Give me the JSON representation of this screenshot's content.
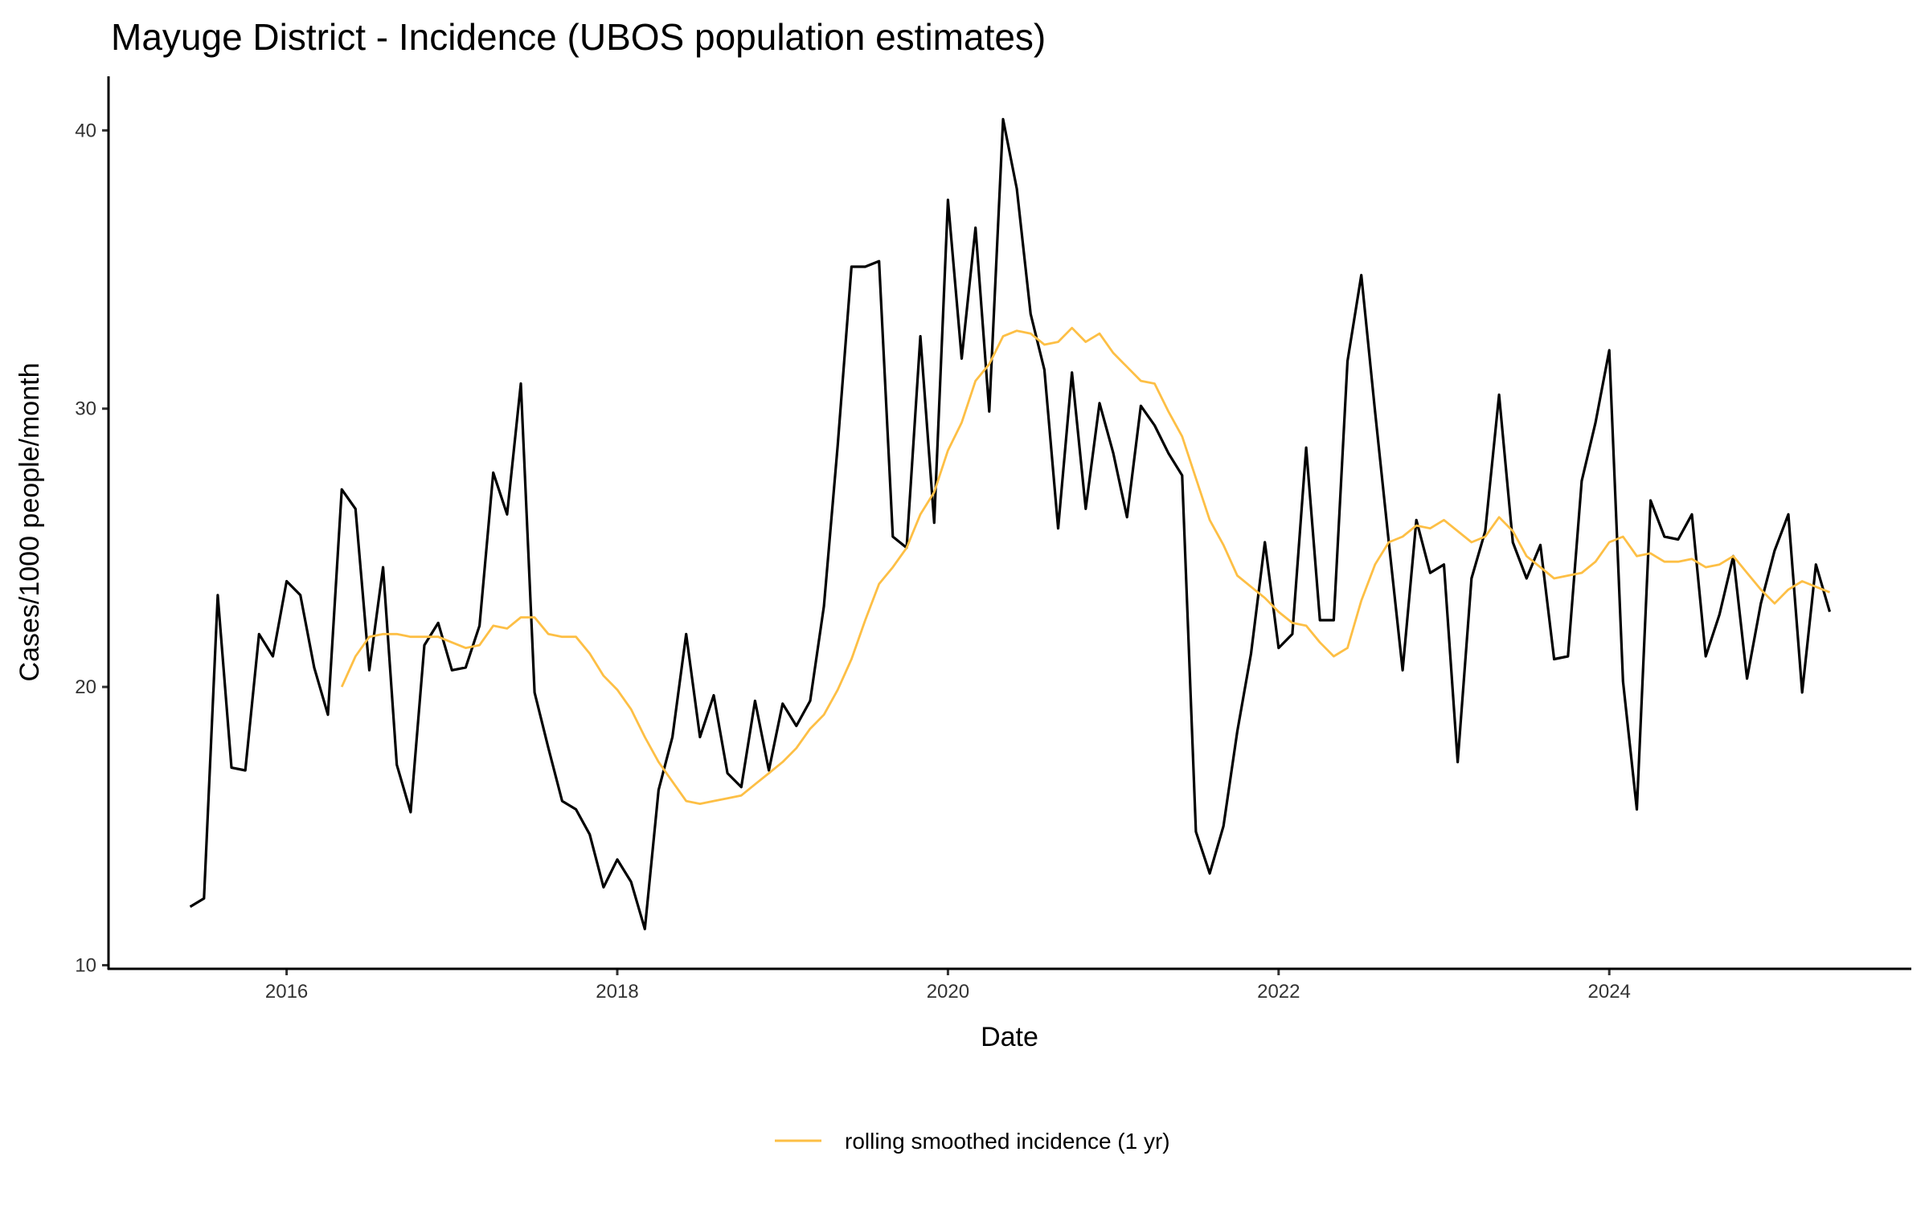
{
  "chart_data": {
    "type": "line",
    "title": "Mayuge District - Incidence (UBOS population estimates)",
    "xlabel": "Date",
    "ylabel": "Cases/1000 people/month",
    "ylim": [
      10,
      42
    ],
    "yticks": [
      10,
      20,
      30,
      40
    ],
    "xticks": [
      "2016",
      "2018",
      "2020",
      "2022",
      "2024"
    ],
    "xlim": [
      "2015-01",
      "2025-10"
    ],
    "grid": false,
    "legend_position": "bottom",
    "series": [
      {
        "color": "#000000",
        "x_start": "2015-06",
        "x": [
          "2015-06",
          "2015-07",
          "2015-08",
          "2015-09",
          "2015-10",
          "2015-11",
          "2015-12",
          "2016-01",
          "2016-02",
          "2016-03",
          "2016-04",
          "2016-05",
          "2016-06",
          "2016-07",
          "2016-08",
          "2016-09",
          "2016-10",
          "2016-11",
          "2016-12",
          "2017-01",
          "2017-02",
          "2017-03",
          "2017-04",
          "2017-05",
          "2017-06",
          "2017-07",
          "2017-08",
          "2017-09",
          "2017-10",
          "2017-11",
          "2017-12",
          "2018-01",
          "2018-02",
          "2018-03",
          "2018-04",
          "2018-05",
          "2018-06",
          "2018-07",
          "2018-08",
          "2018-09",
          "2018-10",
          "2018-11",
          "2018-12",
          "2019-01",
          "2019-02",
          "2019-03",
          "2019-04",
          "2019-05",
          "2019-06",
          "2019-07",
          "2019-08",
          "2019-09",
          "2019-10",
          "2019-11",
          "2019-12",
          "2020-01",
          "2020-02",
          "2020-03",
          "2020-04",
          "2020-05",
          "2020-06",
          "2020-07",
          "2020-08",
          "2020-09",
          "2020-10",
          "2020-11",
          "2020-12",
          "2021-01",
          "2021-02",
          "2021-03",
          "2021-04",
          "2021-05",
          "2021-06",
          "2021-07",
          "2021-08",
          "2021-09",
          "2021-10",
          "2021-11",
          "2021-12",
          "2022-01",
          "2022-02",
          "2022-03",
          "2022-04",
          "2022-05",
          "2022-06",
          "2022-07",
          "2022-08",
          "2022-09",
          "2022-10",
          "2022-11",
          "2022-12",
          "2023-01",
          "2023-02",
          "2023-03",
          "2023-04",
          "2023-05",
          "2023-06",
          "2023-07",
          "2023-08",
          "2023-09",
          "2023-10",
          "2023-11",
          "2023-12",
          "2024-01",
          "2024-02",
          "2024-03",
          "2024-04",
          "2024-05",
          "2024-06",
          "2024-07",
          "2024-08",
          "2024-09",
          "2024-10",
          "2024-11",
          "2024-12",
          "2025-01",
          "2025-02",
          "2025-03",
          "2025-04",
          "2025-05"
        ],
        "values": [
          12.1,
          12.4,
          23.3,
          17.1,
          17.0,
          21.9,
          21.1,
          23.8,
          23.3,
          20.7,
          19.0,
          27.1,
          26.4,
          20.6,
          24.3,
          17.2,
          15.5,
          21.5,
          22.3,
          20.6,
          20.7,
          22.2,
          27.7,
          26.2,
          30.9,
          19.8,
          17.8,
          15.9,
          15.6,
          14.7,
          12.8,
          13.8,
          13.0,
          11.3,
          16.3,
          18.2,
          21.9,
          18.2,
          19.7,
          16.9,
          16.4,
          19.5,
          17.0,
          19.4,
          18.6,
          19.5,
          22.9,
          28.7,
          35.1,
          35.1,
          35.3,
          25.4,
          25.0,
          32.6,
          25.9,
          37.5,
          31.8,
          36.5,
          29.9,
          40.4,
          37.9,
          33.4,
          31.4,
          25.7,
          31.3,
          26.4,
          30.2,
          28.4,
          26.1,
          30.1,
          29.4,
          28.4,
          27.6,
          14.8,
          13.3,
          15.0,
          18.4,
          21.2,
          25.2,
          21.4,
          21.9,
          28.6,
          22.4,
          22.4,
          31.7,
          34.8,
          29.9,
          25.2,
          20.6,
          26.0,
          24.1,
          24.4,
          17.3,
          23.9,
          25.6,
          30.5,
          25.2,
          23.9,
          25.1,
          21.0,
          21.1,
          27.4,
          29.5,
          32.1,
          20.2,
          15.6,
          26.7,
          25.4,
          25.3,
          26.2,
          21.1,
          22.6,
          24.7,
          20.3,
          23.0,
          24.9,
          26.2,
          19.8,
          24.4,
          22.7
        ]
      },
      {
        "name": "rolling smoothed incidence (1 yr)",
        "color": "#FDBF45",
        "x": [
          "2016-05",
          "2016-06",
          "2016-07",
          "2016-08",
          "2016-09",
          "2016-10",
          "2016-11",
          "2016-12",
          "2017-01",
          "2017-02",
          "2017-03",
          "2017-04",
          "2017-05",
          "2017-06",
          "2017-07",
          "2017-08",
          "2017-09",
          "2017-10",
          "2017-11",
          "2017-12",
          "2018-01",
          "2018-02",
          "2018-03",
          "2018-04",
          "2018-05",
          "2018-06",
          "2018-07",
          "2018-08",
          "2018-09",
          "2018-10",
          "2018-11",
          "2018-12",
          "2019-01",
          "2019-02",
          "2019-03",
          "2019-04",
          "2019-05",
          "2019-06",
          "2019-07",
          "2019-08",
          "2019-09",
          "2019-10",
          "2019-11",
          "2019-12",
          "2020-01",
          "2020-02",
          "2020-03",
          "2020-04",
          "2020-05",
          "2020-06",
          "2020-07",
          "2020-08",
          "2020-09",
          "2020-10",
          "2020-11",
          "2020-12",
          "2021-01",
          "2021-02",
          "2021-03",
          "2021-04",
          "2021-05",
          "2021-06",
          "2021-07",
          "2021-08",
          "2021-09",
          "2021-10",
          "2021-11",
          "2021-12",
          "2022-01",
          "2022-02",
          "2022-03",
          "2022-04",
          "2022-05",
          "2022-06",
          "2022-07",
          "2022-08",
          "2022-09",
          "2022-10",
          "2022-11",
          "2022-12",
          "2023-01",
          "2023-02",
          "2023-03",
          "2023-04",
          "2023-05",
          "2023-06",
          "2023-07",
          "2023-08",
          "2023-09",
          "2023-10",
          "2023-11",
          "2023-12",
          "2024-01",
          "2024-02",
          "2024-03",
          "2024-04",
          "2024-05",
          "2024-06",
          "2024-07",
          "2024-08",
          "2024-09",
          "2024-10",
          "2024-11",
          "2024-12",
          "2025-01",
          "2025-02",
          "2025-03",
          "2025-04",
          "2025-05"
        ],
        "values": [
          20.0,
          21.1,
          21.8,
          21.9,
          21.9,
          21.8,
          21.8,
          21.8,
          21.6,
          21.4,
          21.5,
          22.2,
          22.1,
          22.5,
          22.5,
          21.9,
          21.8,
          21.8,
          21.2,
          20.4,
          19.9,
          19.2,
          18.2,
          17.3,
          16.6,
          15.9,
          15.8,
          15.9,
          16.0,
          16.1,
          16.5,
          16.9,
          17.3,
          17.8,
          18.5,
          19.0,
          19.9,
          21.0,
          22.4,
          23.7,
          24.3,
          25.0,
          26.2,
          27.0,
          28.5,
          29.5,
          31.0,
          31.6,
          32.6,
          32.8,
          32.7,
          32.3,
          32.4,
          32.9,
          32.4,
          32.7,
          32.0,
          31.5,
          31.0,
          30.9,
          29.9,
          29.0,
          27.5,
          26.0,
          25.1,
          24.0,
          23.6,
          23.2,
          22.7,
          22.3,
          22.2,
          21.6,
          21.1,
          21.4,
          23.1,
          24.4,
          25.2,
          25.4,
          25.8,
          25.7,
          26.0,
          25.6,
          25.2,
          25.4,
          26.1,
          25.6,
          24.7,
          24.3,
          23.9,
          24.0,
          24.1,
          24.5,
          25.2,
          25.4,
          24.7,
          24.8,
          24.5,
          24.5,
          24.6,
          24.3,
          24.4,
          24.7,
          24.1,
          23.5,
          23.0,
          23.5,
          23.8,
          23.6,
          23.4
        ]
      }
    ]
  }
}
